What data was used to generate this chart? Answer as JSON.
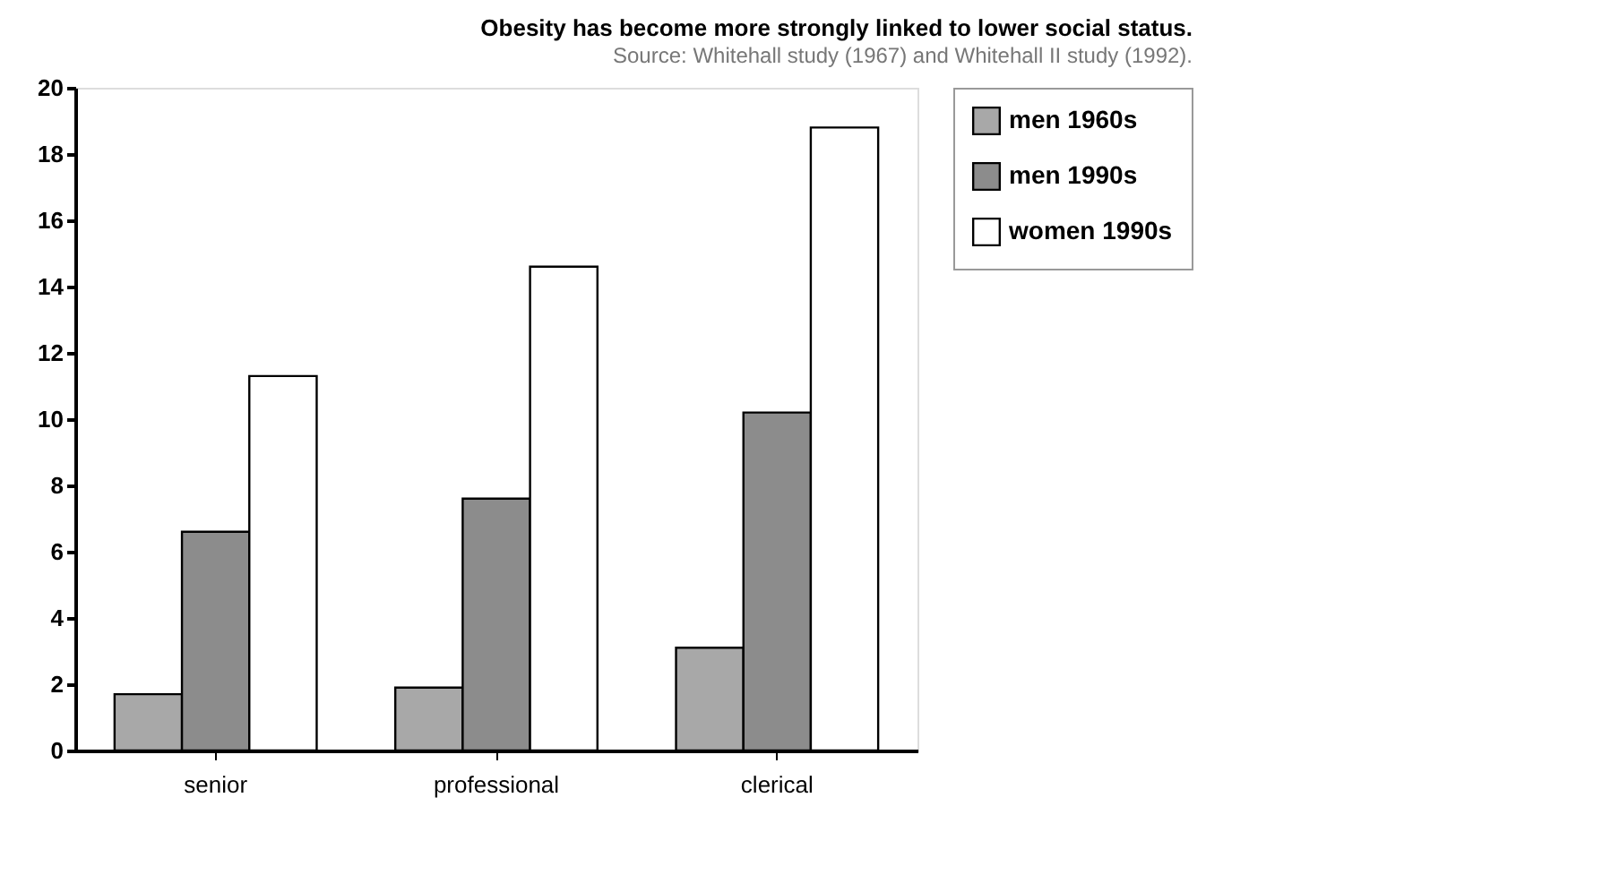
{
  "chart_data": {
    "type": "bar",
    "title": "Obesity has become more strongly linked to lower social status.",
    "annotations": [
      "Source: Whitehall study (1967) and Whitehall II study (1992)."
    ],
    "categories": [
      "senior",
      "professional",
      "clerical"
    ],
    "series": [
      {
        "name": "men 1960s",
        "color": "#a8a8a8",
        "values": [
          1.7,
          1.9,
          3.1
        ]
      },
      {
        "name": "men 1990s",
        "color": "#8c8c8c",
        "values": [
          6.6,
          7.6,
          10.2
        ]
      },
      {
        "name": "women 1990s",
        "color": "#ffffff",
        "values": [
          11.3,
          14.6,
          18.8
        ]
      }
    ],
    "ylim": [
      0,
      20
    ],
    "yticks": [
      0,
      2,
      4,
      6,
      8,
      10,
      12,
      14,
      16,
      18,
      20
    ],
    "grid": false,
    "legend": "right"
  }
}
